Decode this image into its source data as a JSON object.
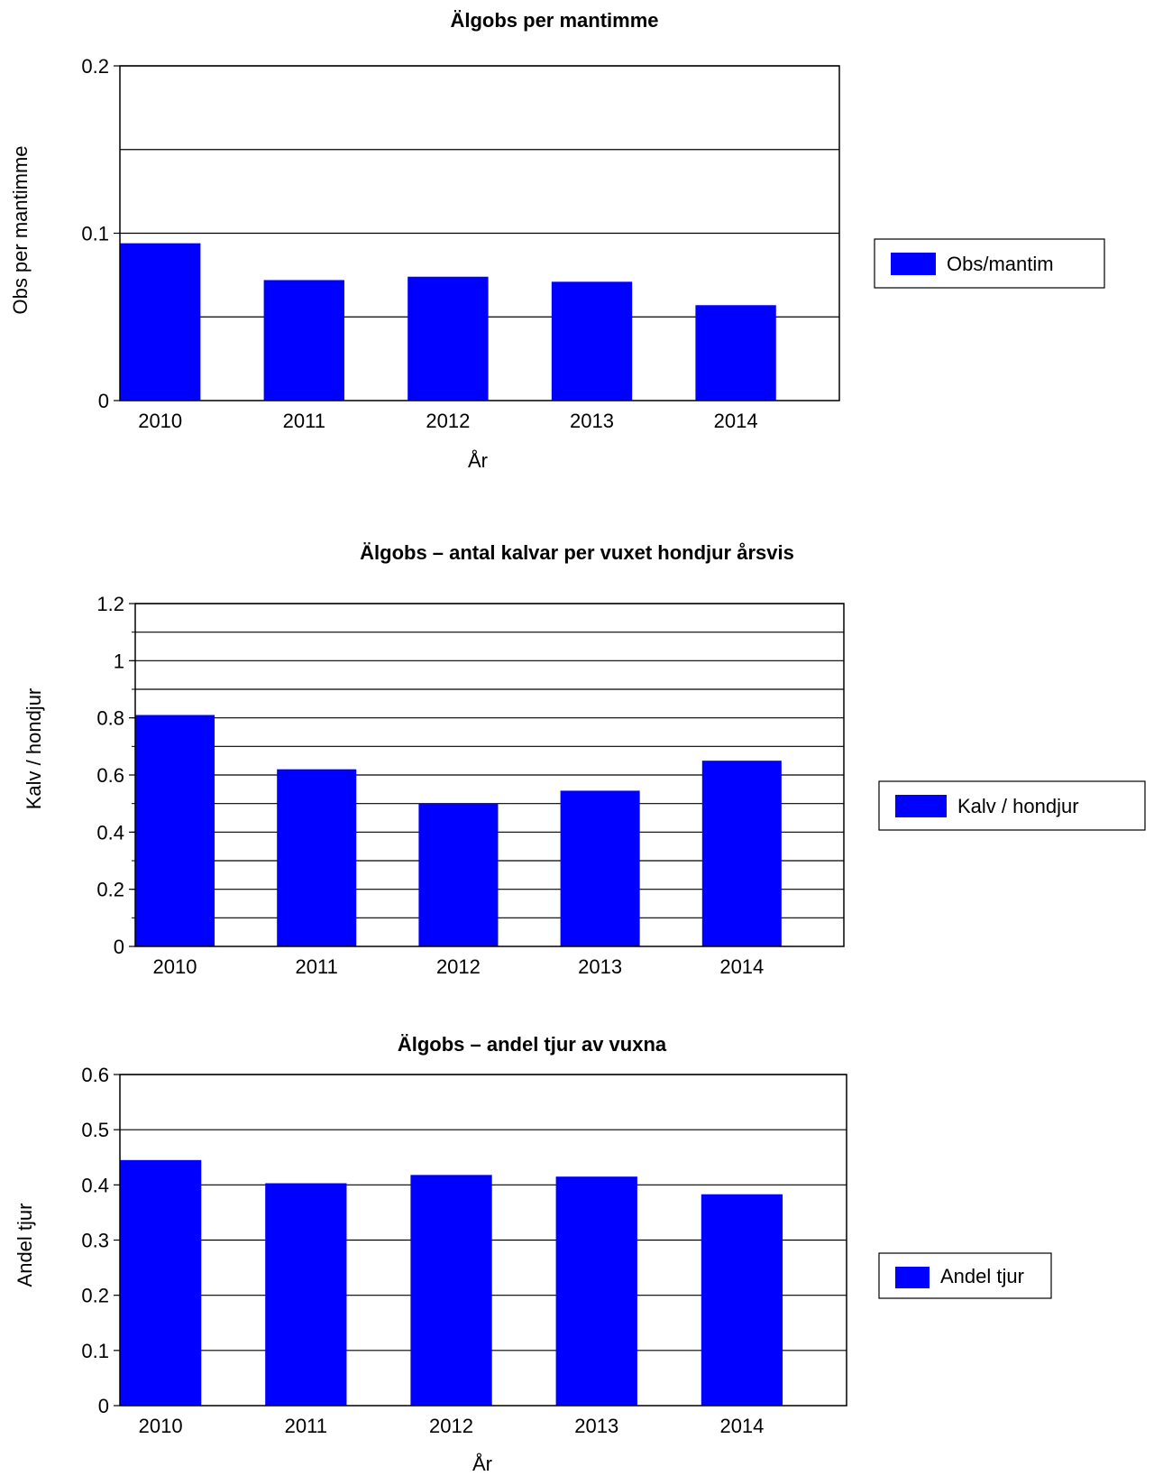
{
  "chart_data": [
    {
      "type": "bar",
      "title": "Älgobs per mantimme",
      "xlabel": "År",
      "ylabel": "Obs per mantimme",
      "categories": [
        "2010",
        "2011",
        "2012",
        "2013",
        "2014"
      ],
      "series": [
        {
          "name": "Obs/mantim",
          "values": [
            0.094,
            0.072,
            0.074,
            0.071,
            0.057
          ]
        }
      ],
      "ylim": [
        0,
        0.2
      ],
      "yticks": [
        "0",
        "0.1",
        "0.2"
      ],
      "gridlines": [
        0.05,
        0.1,
        0.15,
        0.2
      ],
      "legend": "right",
      "colors": {
        "bar": "#0000ff"
      }
    },
    {
      "type": "bar",
      "title": "Älgobs – antal kalvar per vuxet hondjur årsvis",
      "xlabel": "",
      "ylabel": "Kalv / hondjur",
      "categories": [
        "2010",
        "2011",
        "2012",
        "2013",
        "2014"
      ],
      "series": [
        {
          "name": "Kalv / hondjur",
          "values": [
            0.81,
            0.62,
            0.5,
            0.545,
            0.65
          ]
        }
      ],
      "ylim": [
        0,
        1.2
      ],
      "yticks": [
        "0",
        "0.2",
        "0.4",
        "0.6",
        "0.8",
        "1",
        "1.2"
      ],
      "gridlines": [
        0.1,
        0.2,
        0.3,
        0.4,
        0.5,
        0.6,
        0.7,
        0.8,
        0.9,
        1.0,
        1.1,
        1.2
      ],
      "legend": "right",
      "colors": {
        "bar": "#0000ff"
      }
    },
    {
      "type": "bar",
      "title": "Älgobs – andel tjur av vuxna",
      "xlabel": "År",
      "ylabel": "Andel tjur",
      "categories": [
        "2010",
        "2011",
        "2012",
        "2013",
        "2014"
      ],
      "series": [
        {
          "name": "Andel tjur",
          "values": [
            0.445,
            0.403,
            0.418,
            0.415,
            0.383
          ]
        }
      ],
      "ylim": [
        0,
        0.6
      ],
      "yticks": [
        "0",
        "0.1",
        "0.2",
        "0.3",
        "0.4",
        "0.5",
        "0.6"
      ],
      "gridlines": [
        0.1,
        0.2,
        0.3,
        0.4,
        0.5,
        0.6
      ],
      "legend": "right",
      "colors": {
        "bar": "#0000ff"
      }
    }
  ]
}
